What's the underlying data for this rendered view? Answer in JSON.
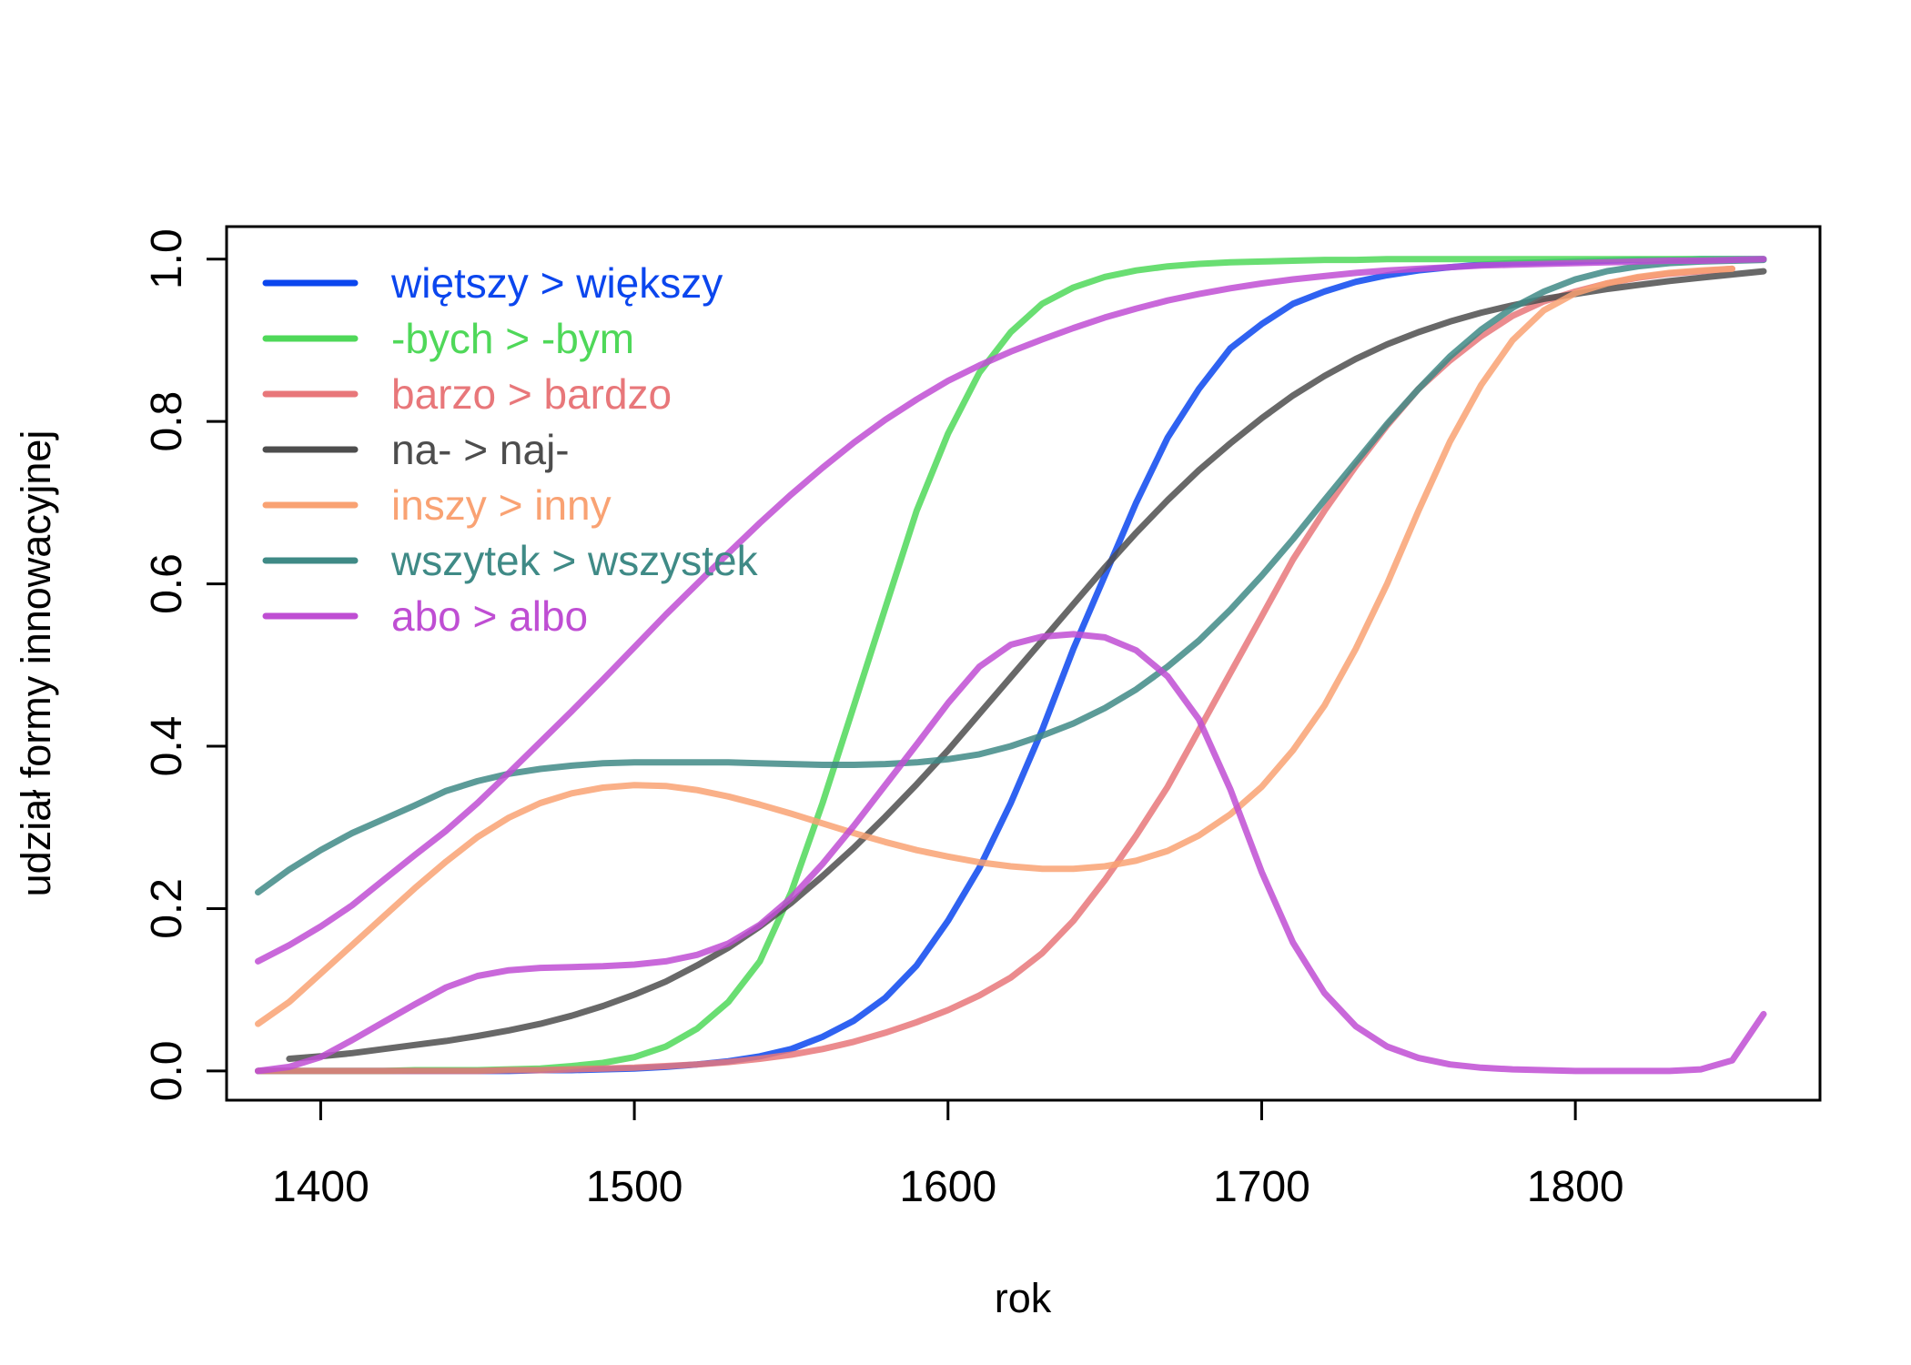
{
  "chart_data": {
    "type": "line",
    "xlabel": "rok",
    "ylabel": "udział formy innowacyjnej",
    "xlim": [
      1370,
      1878
    ],
    "ylim": [
      -0.036,
      1.04
    ],
    "xticks": [
      1400,
      1500,
      1600,
      1700,
      1800
    ],
    "yticks": [
      0.0,
      0.2,
      0.4,
      0.6,
      0.8,
      1.0
    ],
    "xtick_labels": [
      "1400",
      "1500",
      "1600",
      "1700",
      "1800"
    ],
    "ytick_labels": [
      "0.0",
      "0.2",
      "0.4",
      "0.6",
      "0.8",
      "1.0"
    ],
    "legend_position": "top-left",
    "grid": false,
    "series": [
      {
        "name": "więtszy > większy",
        "color": "#0b46ee",
        "x": [
          1380,
          1390,
          1400,
          1410,
          1420,
          1430,
          1440,
          1450,
          1460,
          1470,
          1480,
          1490,
          1500,
          1510,
          1520,
          1530,
          1540,
          1550,
          1560,
          1570,
          1580,
          1590,
          1600,
          1610,
          1620,
          1630,
          1640,
          1650,
          1660,
          1670,
          1680,
          1690,
          1700,
          1710,
          1720,
          1730,
          1740,
          1750,
          1760,
          1770,
          1780,
          1790,
          1800,
          1810,
          1820,
          1830,
          1840,
          1850,
          1860
        ],
        "y": [
          0.0,
          0.0,
          0.0,
          0.0,
          0.0,
          0.0,
          0.0,
          0.0,
          0.0,
          0.001,
          0.001,
          0.002,
          0.003,
          0.005,
          0.008,
          0.012,
          0.018,
          0.027,
          0.042,
          0.062,
          0.09,
          0.13,
          0.185,
          0.25,
          0.33,
          0.42,
          0.52,
          0.61,
          0.7,
          0.78,
          0.84,
          0.89,
          0.92,
          0.945,
          0.96,
          0.972,
          0.98,
          0.986,
          0.99,
          0.993,
          0.995,
          0.996,
          0.997,
          0.998,
          0.999,
          0.999,
          1.0,
          1.0,
          1.0
        ]
      },
      {
        "name": "-bych > -bym",
        "color": "#4fd859",
        "x": [
          1380,
          1390,
          1400,
          1410,
          1420,
          1430,
          1440,
          1450,
          1460,
          1470,
          1480,
          1490,
          1500,
          1510,
          1520,
          1530,
          1540,
          1550,
          1560,
          1570,
          1580,
          1590,
          1600,
          1610,
          1620,
          1630,
          1640,
          1650,
          1660,
          1670,
          1680,
          1690,
          1700,
          1710,
          1720,
          1730,
          1740,
          1750,
          1760,
          1770,
          1780,
          1790,
          1800,
          1810,
          1820,
          1830,
          1840,
          1850,
          1860
        ],
        "y": [
          0.0,
          0.0,
          0.0,
          0.0,
          0.0,
          0.001,
          0.001,
          0.001,
          0.002,
          0.003,
          0.006,
          0.01,
          0.017,
          0.03,
          0.052,
          0.085,
          0.135,
          0.22,
          0.33,
          0.45,
          0.57,
          0.69,
          0.785,
          0.86,
          0.91,
          0.945,
          0.965,
          0.978,
          0.986,
          0.991,
          0.994,
          0.996,
          0.997,
          0.998,
          0.999,
          0.999,
          1.0,
          1.0,
          1.0,
          1.0,
          1.0,
          1.0,
          1.0,
          1.0,
          1.0,
          1.0,
          1.0,
          1.0,
          1.0
        ]
      },
      {
        "name": "barzo > bardzo",
        "color": "#e8777a",
        "x": [
          1380,
          1390,
          1400,
          1410,
          1420,
          1430,
          1440,
          1450,
          1460,
          1470,
          1480,
          1490,
          1500,
          1510,
          1520,
          1530,
          1540,
          1550,
          1560,
          1570,
          1580,
          1590,
          1600,
          1610,
          1620,
          1630,
          1640,
          1650,
          1660,
          1670,
          1680,
          1690,
          1700,
          1710,
          1720,
          1730,
          1740,
          1750,
          1760,
          1770,
          1780,
          1790,
          1800,
          1810,
          1820,
          1830,
          1840,
          1850
        ],
        "y": [
          0.0,
          0.0,
          0.0,
          0.0,
          0.0,
          0.0,
          0.0,
          0.0,
          0.001,
          0.001,
          0.002,
          0.003,
          0.004,
          0.006,
          0.008,
          0.011,
          0.015,
          0.02,
          0.027,
          0.036,
          0.047,
          0.06,
          0.075,
          0.093,
          0.115,
          0.145,
          0.185,
          0.235,
          0.29,
          0.35,
          0.42,
          0.49,
          0.56,
          0.63,
          0.69,
          0.745,
          0.795,
          0.84,
          0.875,
          0.905,
          0.93,
          0.948,
          0.96,
          0.97,
          0.977,
          0.982,
          0.985,
          0.988
        ]
      },
      {
        "name": "na- > naj-",
        "color": "#4d4d4d",
        "x": [
          1390,
          1400,
          1410,
          1420,
          1430,
          1440,
          1450,
          1460,
          1470,
          1480,
          1490,
          1500,
          1510,
          1520,
          1530,
          1540,
          1550,
          1560,
          1570,
          1580,
          1590,
          1600,
          1610,
          1620,
          1630,
          1640,
          1650,
          1660,
          1670,
          1680,
          1690,
          1700,
          1710,
          1720,
          1730,
          1740,
          1750,
          1760,
          1770,
          1780,
          1790,
          1800,
          1810,
          1820,
          1830,
          1840,
          1850,
          1860
        ],
        "y": [
          0.015,
          0.018,
          0.022,
          0.027,
          0.032,
          0.037,
          0.043,
          0.05,
          0.058,
          0.068,
          0.08,
          0.094,
          0.11,
          0.13,
          0.152,
          0.178,
          0.207,
          0.24,
          0.275,
          0.313,
          0.353,
          0.395,
          0.44,
          0.485,
          0.53,
          0.575,
          0.62,
          0.663,
          0.703,
          0.74,
          0.773,
          0.804,
          0.832,
          0.856,
          0.877,
          0.895,
          0.91,
          0.923,
          0.934,
          0.943,
          0.951,
          0.957,
          0.963,
          0.968,
          0.973,
          0.977,
          0.981,
          0.985
        ]
      },
      {
        "name": "inszy > inny",
        "color": "#f9a273",
        "x": [
          1380,
          1390,
          1400,
          1410,
          1420,
          1430,
          1440,
          1450,
          1460,
          1470,
          1480,
          1490,
          1500,
          1510,
          1520,
          1530,
          1540,
          1550,
          1560,
          1570,
          1580,
          1590,
          1600,
          1610,
          1620,
          1630,
          1640,
          1650,
          1660,
          1670,
          1680,
          1690,
          1700,
          1710,
          1720,
          1730,
          1740,
          1750,
          1760,
          1770,
          1780,
          1790,
          1800,
          1810,
          1820,
          1830,
          1840,
          1850
        ],
        "y": [
          0.058,
          0.085,
          0.12,
          0.155,
          0.19,
          0.225,
          0.258,
          0.288,
          0.312,
          0.33,
          0.342,
          0.349,
          0.352,
          0.351,
          0.346,
          0.338,
          0.328,
          0.317,
          0.305,
          0.293,
          0.282,
          0.272,
          0.264,
          0.257,
          0.252,
          0.249,
          0.249,
          0.252,
          0.259,
          0.271,
          0.29,
          0.316,
          0.35,
          0.395,
          0.45,
          0.52,
          0.6,
          0.69,
          0.775,
          0.845,
          0.9,
          0.937,
          0.958,
          0.97,
          0.978,
          0.983,
          0.986,
          0.988
        ]
      },
      {
        "name": "wszytek > wszystek",
        "color": "#3f8a86",
        "x": [
          1380,
          1390,
          1400,
          1410,
          1420,
          1430,
          1440,
          1450,
          1460,
          1470,
          1480,
          1490,
          1500,
          1510,
          1520,
          1530,
          1540,
          1550,
          1560,
          1570,
          1580,
          1590,
          1600,
          1610,
          1620,
          1630,
          1640,
          1650,
          1660,
          1670,
          1680,
          1690,
          1700,
          1710,
          1720,
          1730,
          1740,
          1750,
          1760,
          1770,
          1780,
          1790,
          1800,
          1810,
          1820,
          1830,
          1840,
          1850,
          1860
        ],
        "y": [
          0.22,
          0.248,
          0.272,
          0.293,
          0.31,
          0.327,
          0.345,
          0.357,
          0.366,
          0.372,
          0.376,
          0.379,
          0.38,
          0.38,
          0.38,
          0.38,
          0.379,
          0.378,
          0.377,
          0.377,
          0.378,
          0.38,
          0.384,
          0.39,
          0.4,
          0.413,
          0.428,
          0.447,
          0.47,
          0.498,
          0.53,
          0.568,
          0.61,
          0.655,
          0.703,
          0.75,
          0.797,
          0.84,
          0.88,
          0.913,
          0.94,
          0.96,
          0.975,
          0.985,
          0.991,
          0.995,
          0.997,
          0.998,
          0.999
        ]
      },
      {
        "name": "abo > albo",
        "color": "#bf4ed3",
        "x": [
          1380,
          1390,
          1400,
          1410,
          1420,
          1430,
          1440,
          1450,
          1460,
          1470,
          1480,
          1490,
          1500,
          1510,
          1520,
          1530,
          1540,
          1550,
          1560,
          1570,
          1580,
          1590,
          1600,
          1610,
          1620,
          1630,
          1640,
          1650,
          1660,
          1670,
          1680,
          1690,
          1700,
          1710,
          1720,
          1730,
          1740,
          1750,
          1760,
          1770,
          1780,
          1790,
          1800,
          1810,
          1820,
          1830,
          1840,
          1850,
          1860
        ],
        "y": [
          0.0,
          0.005,
          0.017,
          0.038,
          0.06,
          0.082,
          0.103,
          0.117,
          0.124,
          0.127,
          0.128,
          0.129,
          0.131,
          0.135,
          0.143,
          0.157,
          0.18,
          0.213,
          0.255,
          0.302,
          0.352,
          0.402,
          0.453,
          0.498,
          0.525,
          0.535,
          0.538,
          0.534,
          0.518,
          0.486,
          0.433,
          0.347,
          0.245,
          0.158,
          0.096,
          0.055,
          0.03,
          0.016,
          0.008,
          0.004,
          0.002,
          0.001,
          0.0,
          0.0,
          0.0,
          0.0,
          0.002,
          0.013,
          0.07
        ]
      },
      {
        "name": "abo > albo",
        "color": "#bf4ed3",
        "x": [
          1380,
          1390,
          1400,
          1410,
          1420,
          1430,
          1440,
          1450,
          1460,
          1470,
          1480,
          1490,
          1500,
          1510,
          1520,
          1530,
          1540,
          1550,
          1560,
          1570,
          1580,
          1590,
          1600,
          1610,
          1620,
          1630,
          1640,
          1650,
          1660,
          1670,
          1680,
          1690,
          1700,
          1710,
          1720,
          1730,
          1740,
          1750,
          1760,
          1770,
          1780,
          1790,
          1800,
          1810,
          1820,
          1830,
          1840,
          1850,
          1860
        ],
        "y": [
          0.135,
          0.155,
          0.178,
          0.204,
          0.235,
          0.266,
          0.296,
          0.33,
          0.367,
          0.405,
          0.443,
          0.482,
          0.522,
          0.562,
          0.6,
          0.638,
          0.675,
          0.71,
          0.743,
          0.774,
          0.802,
          0.827,
          0.85,
          0.869,
          0.886,
          0.901,
          0.915,
          0.928,
          0.939,
          0.949,
          0.957,
          0.964,
          0.97,
          0.975,
          0.979,
          0.983,
          0.986,
          0.988,
          0.99,
          0.992,
          0.993,
          0.994,
          0.995,
          0.996,
          0.997,
          0.998,
          0.998,
          0.999,
          1.0
        ]
      }
    ]
  }
}
